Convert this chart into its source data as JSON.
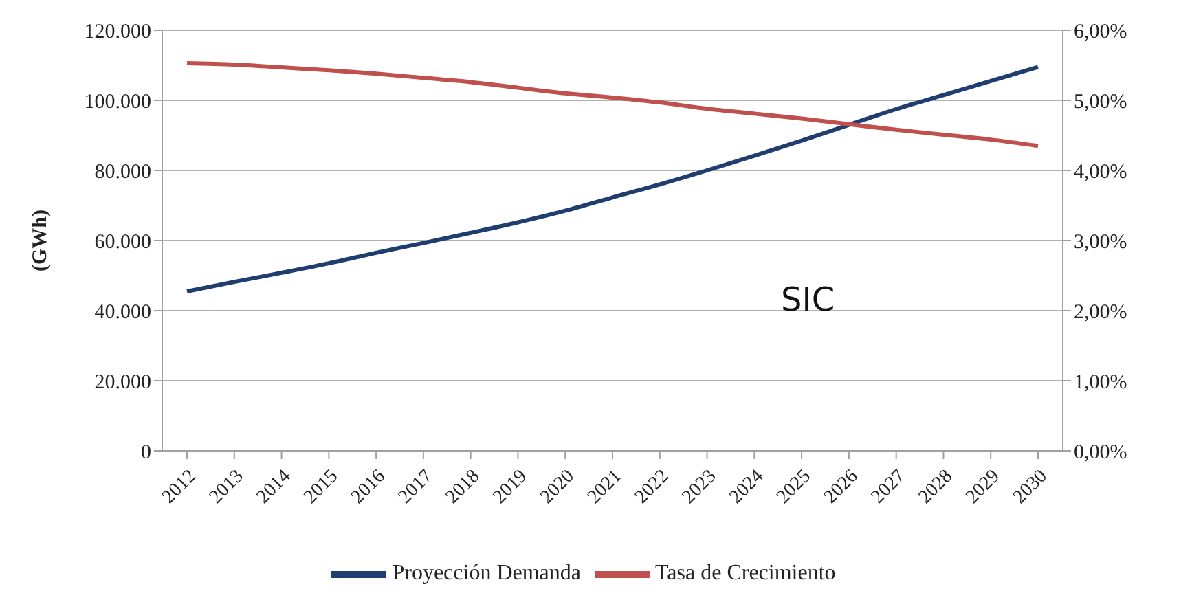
{
  "chart_data": {
    "type": "line",
    "ylabel": "(GWh)",
    "annotations": [
      "SIC"
    ],
    "categories": [
      "2012",
      "2013",
      "2014",
      "2015",
      "2016",
      "2017",
      "2018",
      "2019",
      "2020",
      "2021",
      "2022",
      "2023",
      "2024",
      "2025",
      "2026",
      "2027",
      "2028",
      "2029",
      "2030"
    ],
    "series": [
      {
        "name": "Proyección Demanda",
        "color": "#1f3d6e",
        "values": [
          45500,
          48200,
          50800,
          53500,
          56500,
          59300,
          62200,
          65200,
          68500,
          72300,
          76000,
          80000,
          84200,
          88500,
          93000,
          97500,
          101500,
          105500,
          109500
        ]
      },
      {
        "name": "Tasa de Crecimiento",
        "color": "#c0504d",
        "axis": "y2",
        "values": [
          5.53,
          5.51,
          5.47,
          5.43,
          5.38,
          5.32,
          5.26,
          5.18,
          5.1,
          5.04,
          4.97,
          4.88,
          4.81,
          4.74,
          4.66,
          4.58,
          4.51,
          4.44,
          4.35
        ]
      }
    ],
    "ylim": [
      0,
      120000
    ],
    "yticks": [
      {
        "value": 0,
        "label": "0"
      },
      {
        "value": 20000,
        "label": "20.000"
      },
      {
        "value": 40000,
        "label": "40.000"
      },
      {
        "value": 60000,
        "label": "60.000"
      },
      {
        "value": 80000,
        "label": "80.000"
      },
      {
        "value": 100000,
        "label": "100.000"
      },
      {
        "value": 120000,
        "label": "120.000"
      }
    ],
    "y2lim": [
      0,
      6
    ],
    "y2ticks": [
      {
        "value": 0,
        "label": "0,00%"
      },
      {
        "value": 1,
        "label": "1,00%"
      },
      {
        "value": 2,
        "label": "2,00%"
      },
      {
        "value": 3,
        "label": "3,00%"
      },
      {
        "value": 4,
        "label": "4,00%"
      },
      {
        "value": 5,
        "label": "5,00%"
      },
      {
        "value": 6,
        "label": "6,00%"
      }
    ],
    "grid": "y",
    "legend": "bottom",
    "marker": "none",
    "line_style": "solid"
  }
}
